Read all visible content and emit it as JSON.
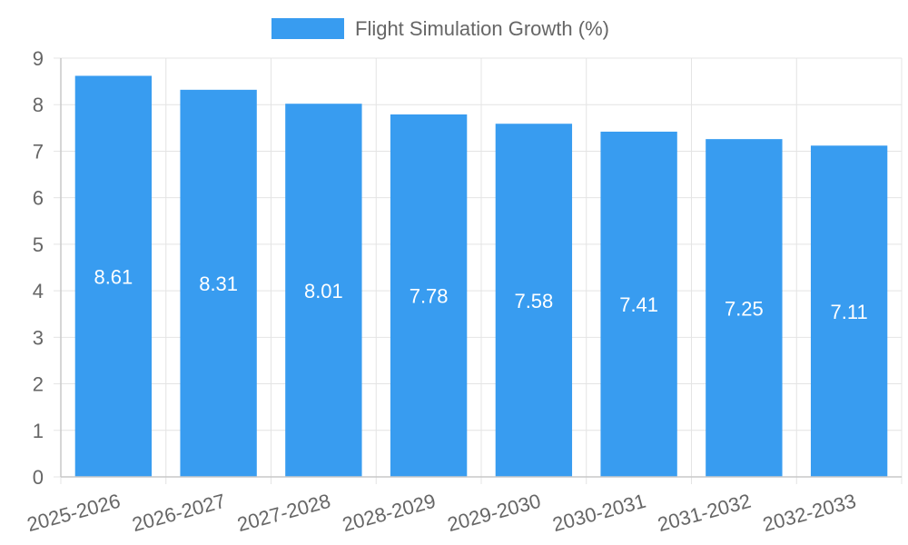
{
  "chart_data": {
    "type": "bar",
    "categories": [
      "2025-2026",
      "2026-2027",
      "2027-2028",
      "2028-2029",
      "2029-2030",
      "2030-2031",
      "2031-2032",
      "2032-2033"
    ],
    "series": [
      {
        "name": "Flight Simulation Growth (%)",
        "values": [
          8.61,
          8.31,
          8.01,
          7.78,
          7.58,
          7.41,
          7.25,
          7.11
        ],
        "color": "#389cf0"
      }
    ],
    "data_labels": [
      "8.61",
      "8.31",
      "8.01",
      "7.78",
      "7.58",
      "7.41",
      "7.25",
      "7.11"
    ],
    "y_ticks": [
      "0",
      "1",
      "2",
      "3",
      "4",
      "5",
      "6",
      "7",
      "8",
      "9"
    ],
    "ylim": [
      0,
      9
    ],
    "grid": true,
    "legend_position": "top-center",
    "title": "",
    "xlabel": "",
    "ylabel": ""
  },
  "colors": {
    "grid": "#e4e4e4",
    "axis": "#c8c8c8",
    "text": "#666666",
    "label": "#ffffff"
  }
}
